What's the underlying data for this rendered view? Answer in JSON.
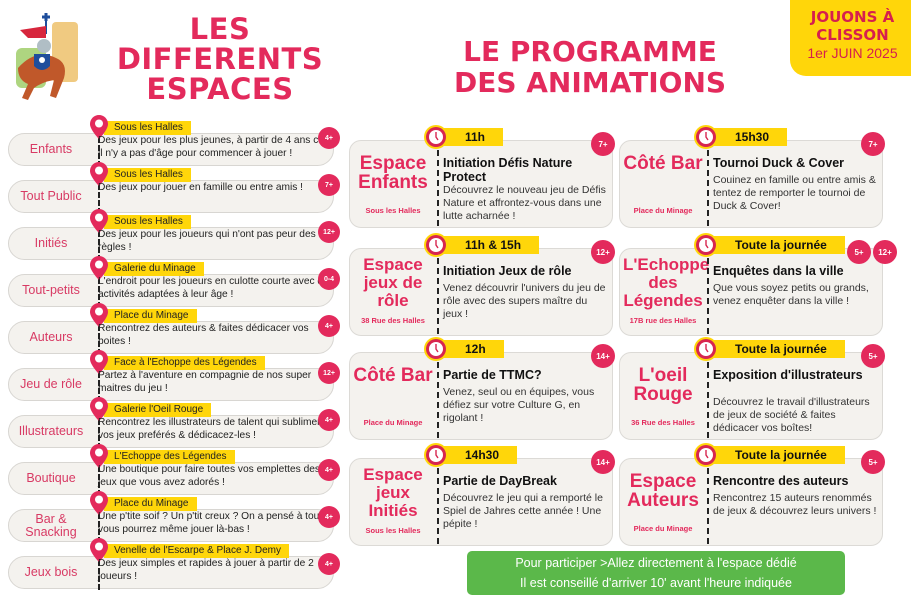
{
  "header": {
    "left_title": [
      "LES",
      "DIFFERENTS",
      "ESPACES"
    ],
    "right_title": [
      "LE PROGRAMME",
      "DES ANIMATIONS"
    ],
    "event_badge": {
      "line1": "JOUONS À",
      "line2": "CLISSON",
      "line3": "1er JUIN 2025"
    },
    "logo": "knight-on-horse-logo"
  },
  "colors": {
    "accent_pink": "#e32a5c",
    "highlight_yellow": "#ffd60a",
    "note_green": "#5bb84a",
    "pill_bg": "#f4f2ee"
  },
  "spaces": [
    {
      "name": "Enfants",
      "location": "Sous les Halles",
      "description": "Des jeux pour les plus jeunes, à partir de 4 ans car il n'y a pas d'âge pour commencer à jouer !",
      "age": "4+"
    },
    {
      "name": "Tout Public",
      "location": "Sous les Halles",
      "description": "Des jeux pour jouer en famille ou entre amis !",
      "age": "7+"
    },
    {
      "name": "Initiés",
      "location": "Sous les Halles",
      "description": "Des jeux pour les joueurs qui n'ont pas peur des règles !",
      "age": "12+"
    },
    {
      "name": "Tout-petits",
      "location": "Galerie du Minage",
      "description": "L'endroit pour les joueurs en culotte courte avec des activités adaptées à leur âge !",
      "age": "0-4"
    },
    {
      "name": "Auteurs",
      "location": "Place du Minage",
      "description": "Rencontrez des auteurs & faites dédicacer vos boites !",
      "age": "4+"
    },
    {
      "name": "Jeu de rôle",
      "location": "Face à l'Echoppe des Légendes",
      "description": "Partez à l'aventure en compagnie de nos super maitres du jeu !",
      "age": "12+"
    },
    {
      "name": "Illustrateurs",
      "location": "Galerie l'Oeil Rouge",
      "description": "Rencontrez les illustrateurs de talent qui subliment vos jeux preférés & dédicacez-les !",
      "age": "4+"
    },
    {
      "name": "Boutique",
      "location": "L'Echoppe des Légendes",
      "description": "Une boutique pour faire toutes vos emplettes des jeux que vous avez adorés !",
      "age": "4+"
    },
    {
      "name": "Bar & Snacking",
      "location": "Place du Minage",
      "description": "Une p'tite soif ? Un p'tit creux ? On a pensé à tout et vous pourrez même jouer là-bas !",
      "age": "4+"
    },
    {
      "name": "Jeux bois",
      "location": "Venelle de l'Escarpe & Place J. Demy",
      "description": "Des jeux simples et rapides à jouer à partir de 2 joueurs !",
      "age": "4+"
    }
  ],
  "animations": [
    {
      "time": "11h",
      "place": "Espace Enfants",
      "address": "Sous les Halles",
      "title": "Initiation Défis Nature Protect",
      "description": "Découvrez le nouveau jeu de Défis Nature et affrontez-vous dans une lutte acharnée !",
      "ages": [
        "7+"
      ]
    },
    {
      "time": "15h30",
      "place": "Côté Bar",
      "address": "Place du Minage",
      "title": "Tournoi Duck & Cover",
      "description": "Couinez en famille ou entre amis & tentez de remporter le tournoi de Duck & Cover!",
      "ages": [
        "7+"
      ]
    },
    {
      "time": "11h & 15h",
      "place": "Espace jeux de rôle",
      "address": "38 Rue des Halles",
      "title": "Initiation Jeux de rôle",
      "description": "Venez découvrir l'univers du jeu de rôle avec des supers maître du jeux !",
      "ages": [
        "12+"
      ]
    },
    {
      "time": "Toute la journée",
      "place": "L'Echoppe des Légendes",
      "address": "17B rue des Halles",
      "title": "Enquêtes dans la ville",
      "description": "Que vous soyez petits ou grands, venez enquêter dans la ville !",
      "ages": [
        "5+",
        "12+"
      ]
    },
    {
      "time": "12h",
      "place": "Côté Bar",
      "address": "Place du Minage",
      "title": "Partie de TTMC?",
      "description": "Venez, seul ou en équipes, vous défiez sur votre Culture G, en rigolant !",
      "ages": [
        "14+"
      ]
    },
    {
      "time": "Toute la journée",
      "place": "L'oeil Rouge",
      "address": "36 Rue des Halles",
      "title": "Exposition d'illustrateurs",
      "description": "Découvrez le travail d'illustrateurs de jeux de société & faites dédicacer vos boîtes!",
      "ages": [
        "5+"
      ]
    },
    {
      "time": "14h30",
      "place": "Espace jeux Initiés",
      "address": "Sous les Halles",
      "title": "Partie de DayBreak",
      "description": "Découvrez le jeu qui a remporté le Spiel de Jahres cette année ! Une pépite !",
      "ages": [
        "14+"
      ]
    },
    {
      "time": "Toute la journée",
      "place": "Espace Auteurs",
      "address": "Place du Minage",
      "title": "Rencontre des auteurs",
      "description": "Rencontrez 15 auteurs renommés de jeux & découvrez leurs univers !",
      "ages": [
        "5+"
      ]
    }
  ],
  "note": {
    "line1": "Pour participer  >Allez directement à l'espace dédié",
    "line2": "Il est conseillé d'arriver 10' avant l'heure indiquée"
  },
  "icons": {
    "pin": "map-pin-icon",
    "clock": "alarm-clock-icon",
    "age": "age-badge"
  }
}
